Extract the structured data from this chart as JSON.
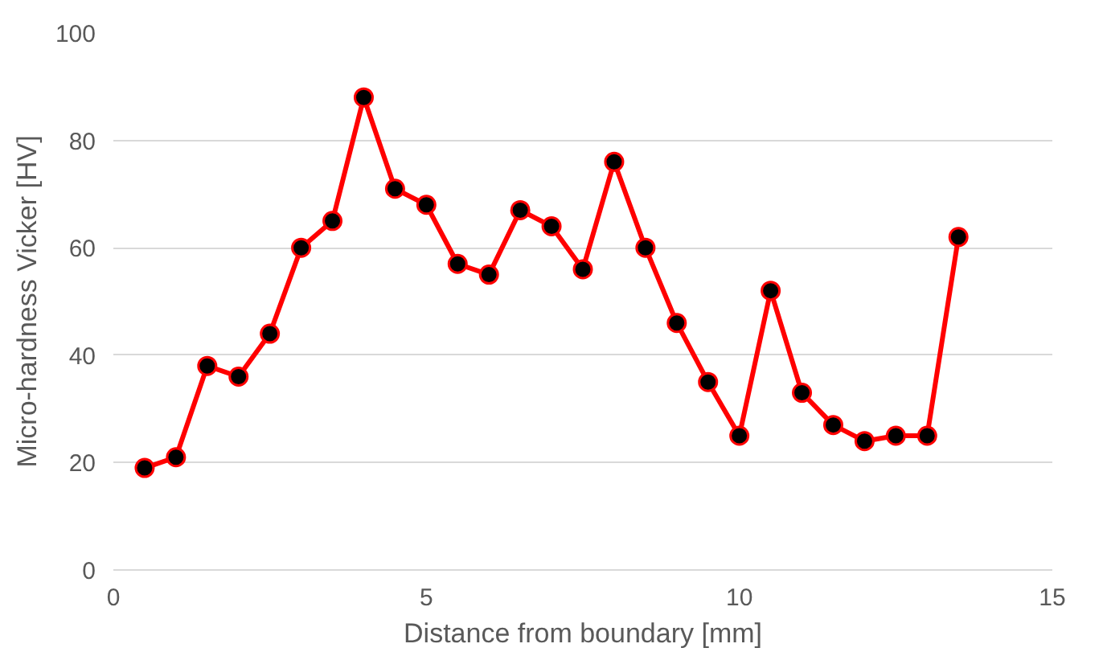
{
  "chart_data": {
    "type": "line",
    "xlabel": "Distance from boundary [mm]",
    "ylabel": "Micro-hardness Vicker [HV]",
    "x": [
      0.5,
      1,
      1.5,
      2,
      2.5,
      3,
      3.5,
      4,
      4.5,
      5,
      5.5,
      6,
      6.5,
      7,
      7.5,
      8,
      8.5,
      9,
      9.5,
      10,
      10.5,
      11,
      11.5,
      12,
      12.5,
      13,
      13.5
    ],
    "series": [
      {
        "color": "#ff0000",
        "values": [
          19,
          21,
          38,
          36,
          44,
          60,
          65,
          88,
          71,
          68,
          57,
          55,
          67,
          64,
          56,
          76,
          60,
          46,
          35,
          25,
          52,
          33,
          27,
          24,
          25,
          25,
          62
        ]
      }
    ],
    "xlim": [
      0,
      15
    ],
    "ylim": [
      0,
      100
    ],
    "xticks": [
      0,
      5,
      10,
      15
    ],
    "yticks": [
      0,
      20,
      40,
      60,
      80,
      100
    ],
    "grid": "y",
    "marker": "circle",
    "line_style": "solid"
  }
}
